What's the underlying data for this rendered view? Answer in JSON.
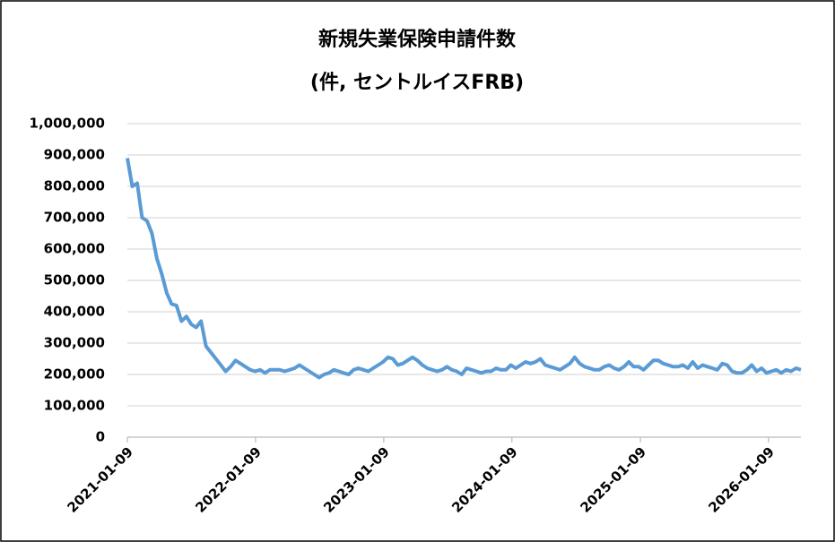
{
  "chart_data": {
    "type": "line",
    "title": "新規失業保険申請件数",
    "subtitle": "(件, セントルイスFRB)",
    "x": [
      "2021-01-09",
      "2021-01-23",
      "2021-02-06",
      "2021-02-20",
      "2021-03-06",
      "2021-03-20",
      "2021-04-03",
      "2021-04-17",
      "2021-05-01",
      "2021-05-15",
      "2021-05-29",
      "2021-06-12",
      "2021-06-26",
      "2021-07-10",
      "2021-07-24",
      "2021-08-07",
      "2021-08-21",
      "2021-09-04",
      "2021-09-18",
      "2021-10-02",
      "2021-10-16",
      "2021-10-30",
      "2021-11-13",
      "2021-11-27",
      "2021-12-11",
      "2021-12-25",
      "2022-01-08",
      "2022-01-22",
      "2022-02-05",
      "2022-02-19",
      "2022-03-05",
      "2022-03-19",
      "2022-04-02",
      "2022-04-16",
      "2022-04-30",
      "2022-05-14",
      "2022-05-28",
      "2022-06-11",
      "2022-06-25",
      "2022-07-09",
      "2022-07-23",
      "2022-08-06",
      "2022-08-20",
      "2022-09-03",
      "2022-09-17",
      "2022-10-01",
      "2022-10-15",
      "2022-10-29",
      "2022-11-12",
      "2022-11-26",
      "2022-12-10",
      "2022-12-24",
      "2023-01-07",
      "2023-01-21",
      "2023-02-04",
      "2023-02-18",
      "2023-03-04",
      "2023-03-18",
      "2023-04-01",
      "2023-04-15",
      "2023-04-29",
      "2023-05-13",
      "2023-05-27",
      "2023-06-10",
      "2023-06-24",
      "2023-07-08",
      "2023-07-22",
      "2023-08-05",
      "2023-08-19",
      "2023-09-02",
      "2023-09-16",
      "2023-09-30",
      "2023-10-14",
      "2023-10-28",
      "2023-11-11",
      "2023-11-25",
      "2023-12-09",
      "2023-12-23",
      "2024-01-06",
      "2024-01-20",
      "2024-02-03",
      "2024-02-17",
      "2024-03-02",
      "2024-03-16",
      "2024-03-30",
      "2024-04-13",
      "2024-04-27",
      "2024-05-11",
      "2024-05-25",
      "2024-06-08",
      "2024-06-22",
      "2024-07-06",
      "2024-07-20",
      "2024-08-03",
      "2024-08-17",
      "2024-08-31",
      "2024-09-14",
      "2024-09-28",
      "2024-10-12",
      "2024-10-26",
      "2024-11-09",
      "2024-11-23",
      "2024-12-07",
      "2024-12-21",
      "2025-01-04",
      "2025-01-18",
      "2025-02-01",
      "2025-02-15",
      "2025-03-01",
      "2025-03-15",
      "2025-03-29",
      "2025-04-12",
      "2025-04-26",
      "2025-05-10",
      "2025-05-24",
      "2025-06-07",
      "2025-06-21",
      "2025-07-05",
      "2025-07-19",
      "2025-08-02",
      "2025-08-16",
      "2025-08-30",
      "2025-09-13",
      "2025-09-27",
      "2025-10-11",
      "2025-10-25",
      "2025-11-08",
      "2025-11-22",
      "2025-12-06",
      "2025-12-20",
      "2026-01-03",
      "2026-01-17",
      "2026-01-31",
      "2026-02-14",
      "2026-02-28",
      "2026-03-14",
      "2026-03-28",
      "2026-04-11"
    ],
    "series": [
      {
        "color": "#5b9bd5",
        "values": [
          890000,
          800000,
          810000,
          700000,
          690000,
          650000,
          570000,
          520000,
          460000,
          425000,
          420000,
          370000,
          385000,
          360000,
          350000,
          370000,
          290000,
          270000,
          250000,
          230000,
          210000,
          225000,
          245000,
          235000,
          225000,
          215000,
          210000,
          215000,
          205000,
          215000,
          215000,
          215000,
          210000,
          215000,
          220000,
          230000,
          220000,
          210000,
          200000,
          190000,
          200000,
          205000,
          215000,
          210000,
          205000,
          200000,
          215000,
          220000,
          215000,
          210000,
          220000,
          230000,
          240000,
          255000,
          250000,
          230000,
          235000,
          245000,
          255000,
          245000,
          230000,
          220000,
          215000,
          210000,
          215000,
          225000,
          215000,
          210000,
          200000,
          220000,
          215000,
          210000,
          205000,
          210000,
          210000,
          220000,
          215000,
          215000,
          230000,
          220000,
          230000,
          240000,
          235000,
          240000,
          250000,
          230000,
          225000,
          220000,
          215000,
          225000,
          235000,
          255000,
          235000,
          225000,
          220000,
          215000,
          215000,
          225000,
          230000,
          220000,
          215000,
          225000,
          240000,
          225000,
          225000,
          215000,
          230000,
          245000,
          245000,
          235000,
          230000,
          225000,
          225000,
          230000,
          220000,
          240000,
          220000,
          230000,
          225000,
          220000,
          215000,
          235000,
          230000,
          210000,
          205000,
          205000,
          215000,
          230000,
          210000,
          220000,
          205000,
          210000,
          215000,
          205000,
          215000,
          210000,
          220000,
          215000
        ]
      }
    ],
    "xlim": [
      "2021-01-09",
      "2026-04-11"
    ],
    "xticks": [
      "2021-01-09",
      "2022-01-09",
      "2023-01-09",
      "2024-01-09",
      "2025-01-09",
      "2026-01-09"
    ],
    "ylim": [
      0,
      1000000
    ],
    "yticks": [
      0,
      {
        "value": 100000,
        "label": "100,000"
      },
      {
        "value": 200000,
        "label": "200,000"
      },
      {
        "value": 300000,
        "label": "300,000"
      },
      {
        "value": 400000,
        "label": "400,000"
      },
      {
        "value": 500000,
        "label": "500,000"
      },
      {
        "value": 600000,
        "label": "600,000"
      },
      {
        "value": 700000,
        "label": "700,000"
      },
      {
        "value": 800000,
        "label": "800,000"
      },
      {
        "value": 900000,
        "label": "900,000"
      },
      {
        "value": 1000000,
        "label": "1,000,000"
      }
    ],
    "grid": true
  }
}
